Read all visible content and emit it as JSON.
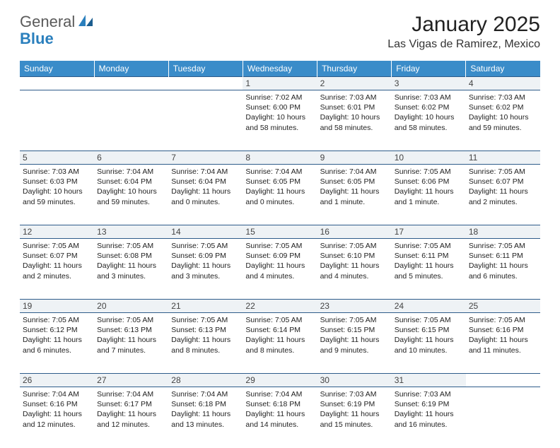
{
  "logo": {
    "textA": "General",
    "textB": "Blue"
  },
  "title": "January 2025",
  "location": "Las Vigas de Ramirez, Mexico",
  "colors": {
    "header_bg": "#3a8cc9",
    "header_text": "#ffffff",
    "daynum_bg": "#eef2f5",
    "row_border": "#2e5c8a",
    "logo_gray": "#5a5a5a",
    "logo_blue": "#2a7fbd"
  },
  "weekdays": [
    "Sunday",
    "Monday",
    "Tuesday",
    "Wednesday",
    "Thursday",
    "Friday",
    "Saturday"
  ],
  "weeks": [
    {
      "nums": [
        "",
        "",
        "",
        "1",
        "2",
        "3",
        "4"
      ],
      "cells": [
        {
          "sunrise": "",
          "sunset": "",
          "daylight": ""
        },
        {
          "sunrise": "",
          "sunset": "",
          "daylight": ""
        },
        {
          "sunrise": "",
          "sunset": "",
          "daylight": ""
        },
        {
          "sunrise": "Sunrise: 7:02 AM",
          "sunset": "Sunset: 6:00 PM",
          "daylight": "Daylight: 10 hours and 58 minutes."
        },
        {
          "sunrise": "Sunrise: 7:03 AM",
          "sunset": "Sunset: 6:01 PM",
          "daylight": "Daylight: 10 hours and 58 minutes."
        },
        {
          "sunrise": "Sunrise: 7:03 AM",
          "sunset": "Sunset: 6:02 PM",
          "daylight": "Daylight: 10 hours and 58 minutes."
        },
        {
          "sunrise": "Sunrise: 7:03 AM",
          "sunset": "Sunset: 6:02 PM",
          "daylight": "Daylight: 10 hours and 59 minutes."
        }
      ]
    },
    {
      "nums": [
        "5",
        "6",
        "7",
        "8",
        "9",
        "10",
        "11"
      ],
      "cells": [
        {
          "sunrise": "Sunrise: 7:03 AM",
          "sunset": "Sunset: 6:03 PM",
          "daylight": "Daylight: 10 hours and 59 minutes."
        },
        {
          "sunrise": "Sunrise: 7:04 AM",
          "sunset": "Sunset: 6:04 PM",
          "daylight": "Daylight: 10 hours and 59 minutes."
        },
        {
          "sunrise": "Sunrise: 7:04 AM",
          "sunset": "Sunset: 6:04 PM",
          "daylight": "Daylight: 11 hours and 0 minutes."
        },
        {
          "sunrise": "Sunrise: 7:04 AM",
          "sunset": "Sunset: 6:05 PM",
          "daylight": "Daylight: 11 hours and 0 minutes."
        },
        {
          "sunrise": "Sunrise: 7:04 AM",
          "sunset": "Sunset: 6:05 PM",
          "daylight": "Daylight: 11 hours and 1 minute."
        },
        {
          "sunrise": "Sunrise: 7:05 AM",
          "sunset": "Sunset: 6:06 PM",
          "daylight": "Daylight: 11 hours and 1 minute."
        },
        {
          "sunrise": "Sunrise: 7:05 AM",
          "sunset": "Sunset: 6:07 PM",
          "daylight": "Daylight: 11 hours and 2 minutes."
        }
      ]
    },
    {
      "nums": [
        "12",
        "13",
        "14",
        "15",
        "16",
        "17",
        "18"
      ],
      "cells": [
        {
          "sunrise": "Sunrise: 7:05 AM",
          "sunset": "Sunset: 6:07 PM",
          "daylight": "Daylight: 11 hours and 2 minutes."
        },
        {
          "sunrise": "Sunrise: 7:05 AM",
          "sunset": "Sunset: 6:08 PM",
          "daylight": "Daylight: 11 hours and 3 minutes."
        },
        {
          "sunrise": "Sunrise: 7:05 AM",
          "sunset": "Sunset: 6:09 PM",
          "daylight": "Daylight: 11 hours and 3 minutes."
        },
        {
          "sunrise": "Sunrise: 7:05 AM",
          "sunset": "Sunset: 6:09 PM",
          "daylight": "Daylight: 11 hours and 4 minutes."
        },
        {
          "sunrise": "Sunrise: 7:05 AM",
          "sunset": "Sunset: 6:10 PM",
          "daylight": "Daylight: 11 hours and 4 minutes."
        },
        {
          "sunrise": "Sunrise: 7:05 AM",
          "sunset": "Sunset: 6:11 PM",
          "daylight": "Daylight: 11 hours and 5 minutes."
        },
        {
          "sunrise": "Sunrise: 7:05 AM",
          "sunset": "Sunset: 6:11 PM",
          "daylight": "Daylight: 11 hours and 6 minutes."
        }
      ]
    },
    {
      "nums": [
        "19",
        "20",
        "21",
        "22",
        "23",
        "24",
        "25"
      ],
      "cells": [
        {
          "sunrise": "Sunrise: 7:05 AM",
          "sunset": "Sunset: 6:12 PM",
          "daylight": "Daylight: 11 hours and 6 minutes."
        },
        {
          "sunrise": "Sunrise: 7:05 AM",
          "sunset": "Sunset: 6:13 PM",
          "daylight": "Daylight: 11 hours and 7 minutes."
        },
        {
          "sunrise": "Sunrise: 7:05 AM",
          "sunset": "Sunset: 6:13 PM",
          "daylight": "Daylight: 11 hours and 8 minutes."
        },
        {
          "sunrise": "Sunrise: 7:05 AM",
          "sunset": "Sunset: 6:14 PM",
          "daylight": "Daylight: 11 hours and 8 minutes."
        },
        {
          "sunrise": "Sunrise: 7:05 AM",
          "sunset": "Sunset: 6:15 PM",
          "daylight": "Daylight: 11 hours and 9 minutes."
        },
        {
          "sunrise": "Sunrise: 7:05 AM",
          "sunset": "Sunset: 6:15 PM",
          "daylight": "Daylight: 11 hours and 10 minutes."
        },
        {
          "sunrise": "Sunrise: 7:05 AM",
          "sunset": "Sunset: 6:16 PM",
          "daylight": "Daylight: 11 hours and 11 minutes."
        }
      ]
    },
    {
      "nums": [
        "26",
        "27",
        "28",
        "29",
        "30",
        "31",
        ""
      ],
      "cells": [
        {
          "sunrise": "Sunrise: 7:04 AM",
          "sunset": "Sunset: 6:16 PM",
          "daylight": "Daylight: 11 hours and 12 minutes."
        },
        {
          "sunrise": "Sunrise: 7:04 AM",
          "sunset": "Sunset: 6:17 PM",
          "daylight": "Daylight: 11 hours and 12 minutes."
        },
        {
          "sunrise": "Sunrise: 7:04 AM",
          "sunset": "Sunset: 6:18 PM",
          "daylight": "Daylight: 11 hours and 13 minutes."
        },
        {
          "sunrise": "Sunrise: 7:04 AM",
          "sunset": "Sunset: 6:18 PM",
          "daylight": "Daylight: 11 hours and 14 minutes."
        },
        {
          "sunrise": "Sunrise: 7:03 AM",
          "sunset": "Sunset: 6:19 PM",
          "daylight": "Daylight: 11 hours and 15 minutes."
        },
        {
          "sunrise": "Sunrise: 7:03 AM",
          "sunset": "Sunset: 6:19 PM",
          "daylight": "Daylight: 11 hours and 16 minutes."
        },
        {
          "sunrise": "",
          "sunset": "",
          "daylight": ""
        }
      ]
    }
  ]
}
